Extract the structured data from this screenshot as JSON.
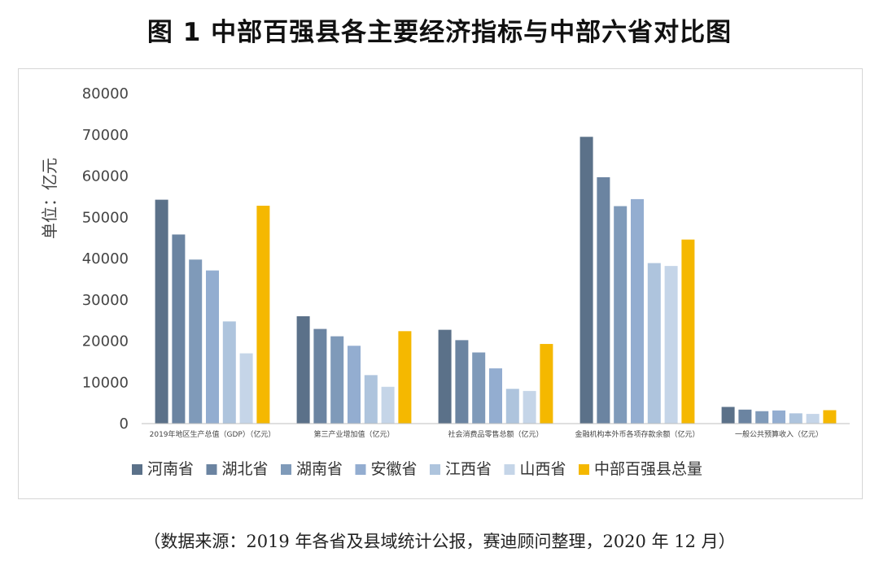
{
  "title": "图 1 中部百强县各主要经济指标与中部六省对比图",
  "source_note": "（数据来源：2019 年各省及县域统计公报，赛迪顾问整理，2020 年 12 月）",
  "chart_data": {
    "type": "bar",
    "ylabel": "单位：亿元",
    "xlabel": "",
    "ylim": [
      0,
      80000
    ],
    "yticks": [
      0,
      10000,
      20000,
      30000,
      40000,
      50000,
      60000,
      70000,
      80000
    ],
    "grid": false,
    "legend_position": "bottom",
    "categories": [
      "2019年地区生产总值（GDP）（亿元）",
      "第三产业增加值（亿元）",
      "社会消费品零售总额（亿元）",
      "金融机构本外币各项存款余额（亿元）",
      "一般公共预算收入（亿元）"
    ],
    "series": [
      {
        "name": "河南省",
        "color": "#5b7189",
        "values": [
          54259,
          26019,
          22733,
          69500,
          4041
        ]
      },
      {
        "name": "湖北省",
        "color": "#6b84a1",
        "values": [
          45828,
          22941,
          20224,
          59700,
          3388
        ]
      },
      {
        "name": "湖南省",
        "color": "#7f9ab9",
        "values": [
          39752,
          21158,
          17239,
          52700,
          3007
        ]
      },
      {
        "name": "安徽省",
        "color": "#93add0",
        "values": [
          37114,
          18860,
          13384,
          54400,
          3183
        ]
      },
      {
        "name": "江西省",
        "color": "#aec4dd",
        "values": [
          24758,
          11752,
          8421,
          38900,
          2487
        ]
      },
      {
        "name": "山西省",
        "color": "#c5d5e8",
        "values": [
          17027,
          8914,
          7909,
          38200,
          2347
        ]
      },
      {
        "name": "中部百强县总量",
        "color": "#f5b800",
        "values": [
          52800,
          22400,
          19300,
          44600,
          3250
        ]
      }
    ]
  }
}
